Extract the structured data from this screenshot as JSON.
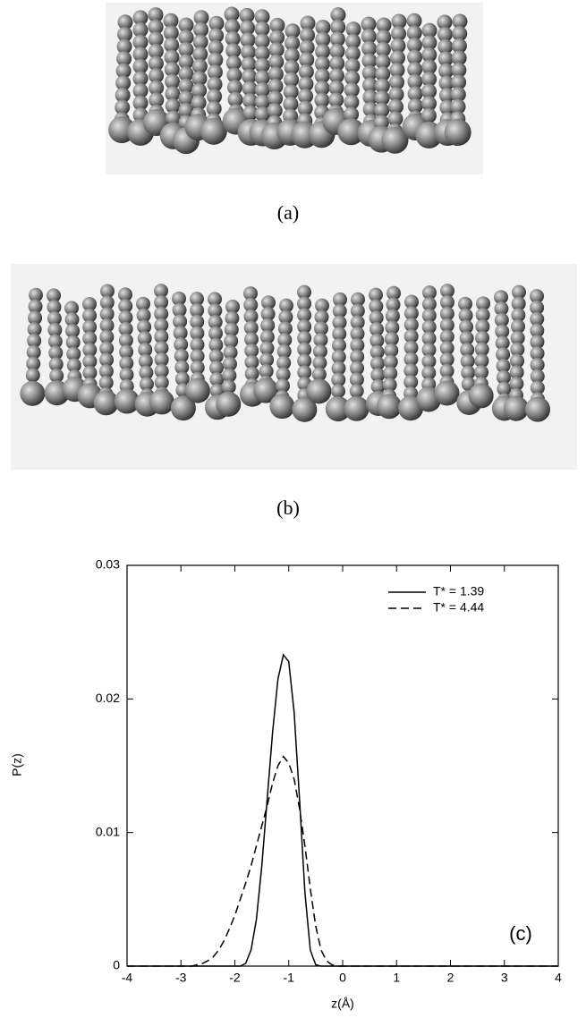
{
  "panel_labels": [
    "(a)",
    "(b)"
  ],
  "chart_data": {
    "type": "line",
    "xlabel": "z(Å)",
    "ylabel": "P(z)",
    "annotation": "(c)",
    "xlim": [
      -4,
      4
    ],
    "xticks": [
      -4,
      -3,
      -2,
      -1,
      0,
      1,
      2,
      3,
      4
    ],
    "ylim": [
      0,
      0.03
    ],
    "yticks": [
      0,
      0.01,
      0.02,
      0.03
    ],
    "legend": "upper right",
    "x": [
      -4,
      -3,
      -2.9,
      -2.8,
      -2.7,
      -2.6,
      -2.5,
      -2.4,
      -2.3,
      -2.2,
      -2.1,
      -2,
      -1.9,
      -1.8,
      -1.7,
      -1.6,
      -1.5,
      -1.4,
      -1.3,
      -1.2,
      -1.1,
      -1,
      -0.9,
      -0.8,
      -0.7,
      -0.6,
      -0.5,
      -0.4,
      -0.3,
      -0.2,
      -0.1,
      0,
      4
    ],
    "series": [
      {
        "name": "T* = 1.39",
        "color": "#000000",
        "linestyle": "solid",
        "values": [
          0,
          0,
          0,
          0,
          0,
          0,
          0,
          0,
          0,
          0,
          0,
          0,
          0,
          0.0002,
          0.0012,
          0.0035,
          0.0075,
          0.0125,
          0.0175,
          0.0215,
          0.0233,
          0.0228,
          0.019,
          0.0125,
          0.0055,
          0.0012,
          0.0001,
          0,
          0,
          0,
          0,
          0,
          0
        ]
      },
      {
        "name": "T* = 4.44",
        "color": "#000000",
        "linestyle": "dashed",
        "values": [
          0,
          0,
          0,
          0,
          0.0001,
          0.0002,
          0.0004,
          0.0007,
          0.0012,
          0.0019,
          0.0028,
          0.0038,
          0.005,
          0.0062,
          0.0075,
          0.009,
          0.0105,
          0.012,
          0.0137,
          0.015,
          0.0157,
          0.0152,
          0.014,
          0.0118,
          0.009,
          0.0058,
          0.003,
          0.0012,
          0.0004,
          0.0001,
          0,
          0,
          0
        ]
      }
    ]
  }
}
